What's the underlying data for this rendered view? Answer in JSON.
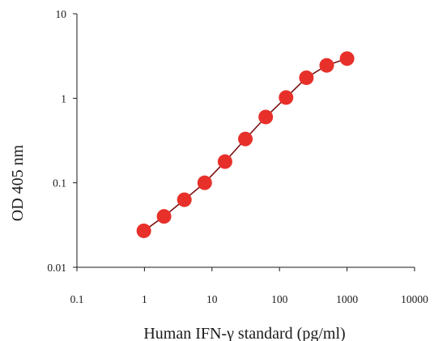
{
  "chart_data": {
    "type": "line",
    "title": "",
    "xlabel": "Human IFN-γ standard (pg/ml)",
    "ylabel": "OD 405 nm",
    "xscale": "log",
    "yscale": "log",
    "xlim": [
      0.1,
      10000
    ],
    "ylim": [
      0.01,
      10
    ],
    "x_ticks": [
      0.1,
      1,
      10,
      100,
      1000,
      10000
    ],
    "x_tick_labels": [
      "0.1",
      "1",
      "10",
      "100",
      "1000",
      "10000"
    ],
    "y_ticks": [
      0.01,
      0.1,
      1,
      10
    ],
    "y_tick_labels": [
      "0.01",
      "0.1",
      "1",
      "10"
    ],
    "grid": false,
    "legend": "none",
    "series": [
      {
        "color": "#e8302a",
        "line_color": "#7a1010",
        "marker": "circle",
        "x": [
          0.98,
          1.95,
          3.9,
          7.8,
          15.6,
          31.2,
          62.5,
          125,
          250,
          500,
          1000
        ],
        "y": [
          0.027,
          0.04,
          0.063,
          0.1,
          0.178,
          0.33,
          0.6,
          1.02,
          1.75,
          2.45,
          2.95
        ]
      }
    ]
  }
}
